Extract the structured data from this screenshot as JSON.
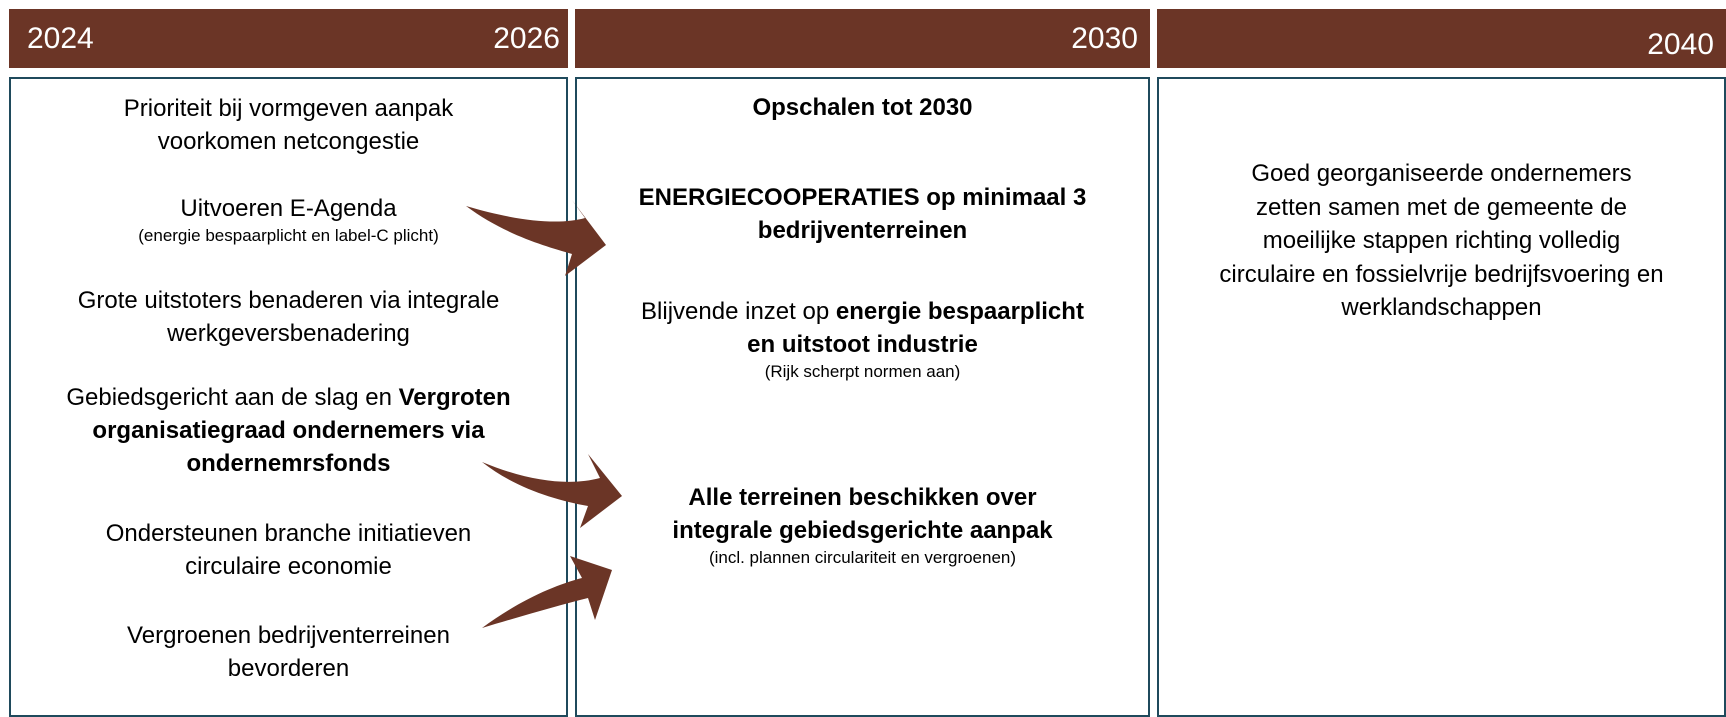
{
  "header": {
    "phases": [
      {
        "start": "2024",
        "end": "2026"
      },
      {
        "end": "2030"
      },
      {
        "end": "2040"
      }
    ]
  },
  "columns": [
    {
      "items": [
        {
          "text": "Prioriteit bij vormgeven aanpak voorkomen netcongestie"
        },
        {
          "text": "Uitvoeren E-Agenda",
          "note": "(energie bespaarplicht en label-C plicht)"
        },
        {
          "text": "Grote uitstoters benaderen via integrale werkgeversbenadering"
        },
        {
          "text": "Gebiedsgericht aan de slag en",
          "bold": "Vergroten organisatiegraad ondernemers via ondernemrsfonds"
        },
        {
          "text": "Ondersteunen branche initiatieven circulaire economie"
        },
        {
          "text": "Vergroenen bedrijventerreinen bevorderen"
        }
      ]
    },
    {
      "title": "Opschalen tot 2030",
      "items": [
        {
          "bold": "ENERGIECOOPERATIES op minimaal 3 bedrijventerreinen"
        },
        {
          "text": "Blijvende inzet op",
          "bold": "energie bespaarplicht en uitstoot industrie",
          "note": "(Rijk scherpt normen aan)"
        },
        {
          "bold": "Alle terreinen beschikken over integrale gebiedsgerichte aanpak",
          "note": "(incl. plannen circulariteit en vergroenen)"
        }
      ]
    },
    {
      "items": [
        {
          "text": "Goed georganiseerde ondernemers zetten samen met de gemeente de moeilijke stappen richting volledig circulaire en fossielvrije bedrijfsvoering en werklandschappen"
        }
      ]
    }
  ]
}
